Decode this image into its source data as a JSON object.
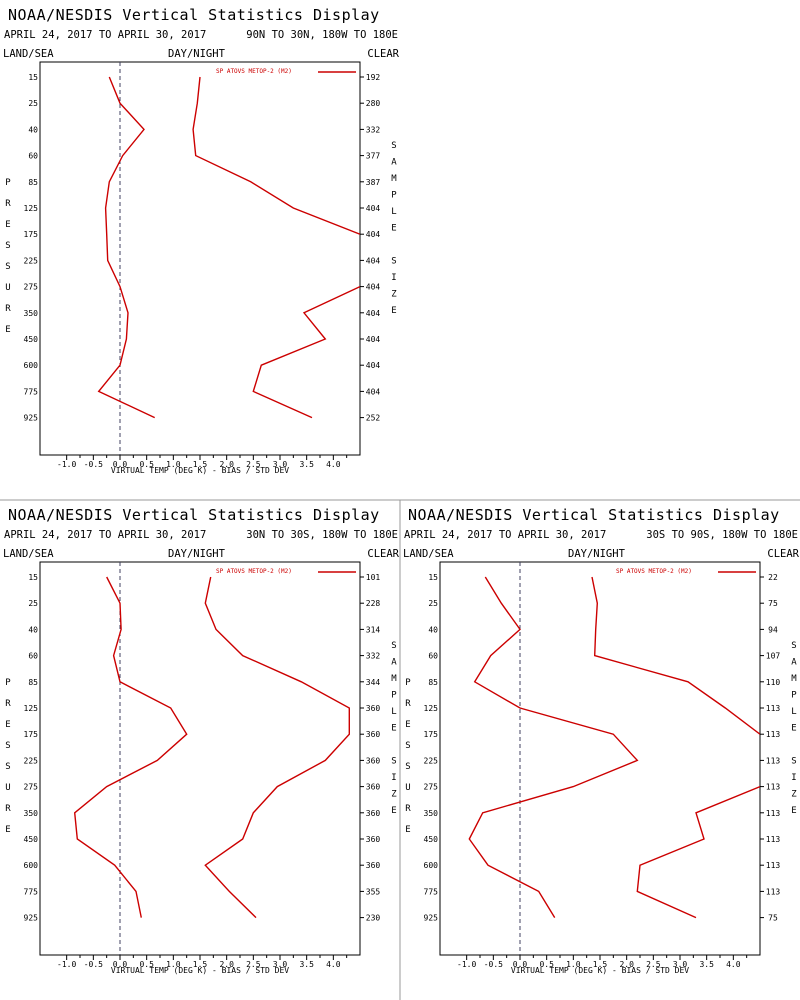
{
  "panel_labels": {
    "title": "NOAA/NESDIS Vertical Statistics Display",
    "land_sea": "LAND/SEA",
    "day_night": "DAY/NIGHT",
    "clear": "CLEAR",
    "pressure_axis_letters": [
      "P",
      "R",
      "E",
      "S",
      "S",
      "U",
      "R",
      "E"
    ],
    "sample_axis_letters": [
      "S",
      "A",
      "M",
      "P",
      "L",
      "E",
      "",
      "S",
      "I",
      "Z",
      "E"
    ]
  },
  "colors": {
    "series": "#cc0000",
    "zero_line": "#404060",
    "frame": "#000000",
    "divider": "#999999"
  },
  "chart_data": [
    {
      "type": "line",
      "title": "NOAA/NESDIS Vertical Statistics Display",
      "date_range": "APRIL 24, 2017 TO APRIL 30, 2017",
      "region": "90N TO 30N, 180W TO 180E",
      "xlabel": "VIRTUAL TEMP (DEG K) - BIAS / STD DEV",
      "ylabel": "PRESSURE",
      "xlim": [
        -1.5,
        4.5
      ],
      "x_ticks": [
        -1.0,
        -0.5,
        0.0,
        0.5,
        1.0,
        1.5,
        2.0,
        2.5,
        3.0,
        3.5,
        4.0
      ],
      "x_tick_labels": [
        "-1.0",
        "-0.5",
        "0.0",
        "0.5",
        "1.0",
        "1.5",
        "2.0",
        "2.5",
        "3.0",
        "3.5",
        "4.0"
      ],
      "pressure_levels": [
        15,
        25,
        40,
        60,
        85,
        125,
        175,
        225,
        275,
        350,
        450,
        600,
        775,
        925
      ],
      "pressure_labels": [
        "15",
        "25",
        "40",
        "60",
        "85",
        "125",
        "175",
        "225",
        "275",
        "350",
        "450",
        "600",
        "775",
        "925"
      ],
      "sample_size_labels": [
        "192",
        "280",
        "332",
        "377",
        "387",
        "404",
        "404",
        "404",
        "404",
        "404",
        "404",
        "404",
        "404",
        "252"
      ],
      "legend": "SP ATOVS METOP-2 (M2)",
      "grid": false,
      "series": [
        {
          "name": "bias",
          "values": [
            -0.2,
            0.0,
            0.45,
            0.05,
            -0.2,
            -0.27,
            -0.25,
            -0.23,
            0.0,
            0.15,
            0.12,
            0.0,
            -0.4,
            0.65
          ]
        },
        {
          "name": "std_dev",
          "values": [
            1.5,
            1.45,
            1.37,
            1.42,
            2.45,
            3.25,
            4.5,
            null,
            4.5,
            3.45,
            3.85,
            2.65,
            2.5,
            3.6
          ]
        }
      ]
    },
    {
      "type": "line",
      "title": "NOAA/NESDIS Vertical Statistics Display",
      "date_range": "APRIL 24, 2017 TO APRIL 30, 2017",
      "region": "30N TO 30S, 180W TO 180E",
      "xlabel": "VIRTUAL TEMP (DEG K) - BIAS / STD DEV",
      "ylabel": "PRESSURE",
      "xlim": [
        -1.5,
        4.5
      ],
      "x_ticks": [
        -1.0,
        -0.5,
        0.0,
        0.5,
        1.0,
        1.5,
        2.0,
        2.5,
        3.0,
        3.5,
        4.0
      ],
      "x_tick_labels": [
        "-1.0",
        "-0.5",
        "0.0",
        "0.5",
        "1.0",
        "1.5",
        "2.0",
        "2.5",
        "3.0",
        "3.5",
        "4.0"
      ],
      "pressure_levels": [
        15,
        25,
        40,
        60,
        85,
        125,
        175,
        225,
        275,
        350,
        450,
        600,
        775,
        925
      ],
      "pressure_labels": [
        "15",
        "25",
        "40",
        "60",
        "85",
        "125",
        "175",
        "225",
        "275",
        "350",
        "450",
        "600",
        "775",
        "925"
      ],
      "sample_size_labels": [
        "101",
        "228",
        "314",
        "332",
        "344",
        "360",
        "360",
        "360",
        "360",
        "360",
        "360",
        "360",
        "355",
        "230"
      ],
      "legend": "SP ATOVS METOP-2 (M2)",
      "grid": false,
      "series": [
        {
          "name": "bias",
          "values": [
            -0.25,
            0.0,
            0.02,
            -0.12,
            0.0,
            0.95,
            1.25,
            0.7,
            -0.25,
            -0.85,
            -0.8,
            -0.1,
            0.3,
            0.4
          ]
        },
        {
          "name": "std_dev",
          "values": [
            1.7,
            1.6,
            1.8,
            2.3,
            3.4,
            4.3,
            4.3,
            3.85,
            2.95,
            2.5,
            2.3,
            1.6,
            2.05,
            2.55
          ]
        }
      ]
    },
    {
      "type": "line",
      "title": "NOAA/NESDIS Vertical Statistics Display",
      "date_range": "APRIL 24, 2017 TO APRIL 30, 2017",
      "region": "30S TO 90S, 180W TO 180E",
      "xlabel": "VIRTUAL TEMP (DEG K) - BIAS / STD DEV",
      "ylabel": "PRESSURE",
      "xlim": [
        -1.5,
        4.5
      ],
      "x_ticks": [
        -1.0,
        -0.5,
        0.0,
        0.5,
        1.0,
        1.5,
        2.0,
        2.5,
        3.0,
        3.5,
        4.0
      ],
      "x_tick_labels": [
        "-1.0",
        "-0.5",
        "0.0",
        "0.5",
        "1.0",
        "1.5",
        "2.0",
        "2.5",
        "3.0",
        "3.5",
        "4.0"
      ],
      "pressure_levels": [
        15,
        25,
        40,
        60,
        85,
        125,
        175,
        225,
        275,
        350,
        450,
        600,
        775,
        925
      ],
      "pressure_labels": [
        "15",
        "25",
        "40",
        "60",
        "85",
        "125",
        "175",
        "225",
        "275",
        "350",
        "450",
        "600",
        "775",
        "925"
      ],
      "sample_size_labels": [
        "22",
        "75",
        "94",
        "107",
        "110",
        "113",
        "113",
        "113",
        "113",
        "113",
        "113",
        "113",
        "113",
        "75"
      ],
      "legend": "SP ATOVS METOP-2 (M2)",
      "grid": false,
      "series": [
        {
          "name": "bias",
          "values": [
            -0.65,
            -0.35,
            0.0,
            -0.55,
            -0.85,
            0.0,
            1.75,
            2.2,
            1.0,
            -0.7,
            -0.95,
            -0.6,
            0.35,
            0.65
          ]
        },
        {
          "name": "std_dev",
          "values": [
            1.35,
            1.45,
            1.42,
            1.4,
            3.15,
            3.85,
            4.5,
            null,
            4.5,
            3.3,
            3.45,
            2.25,
            2.2,
            3.3
          ]
        }
      ]
    }
  ]
}
